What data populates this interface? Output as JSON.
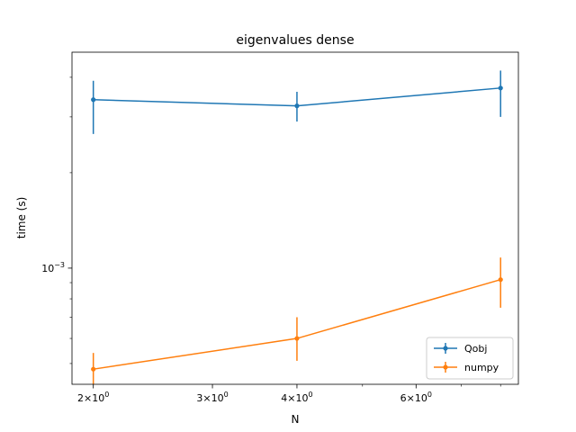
{
  "chart_data": {
    "type": "line",
    "title": "eigenvalues dense",
    "xlabel": "N",
    "ylabel": "time (s)",
    "xscale": "log",
    "yscale": "log",
    "xlim": [
      1.86,
      8.5
    ],
    "ylim": [
      0.00043,
      0.0048
    ],
    "x_ticks": [
      {
        "value": 2,
        "base": "2×10",
        "exp": "0"
      },
      {
        "value": 3,
        "base": "3×10",
        "exp": "0"
      },
      {
        "value": 4,
        "base": "4×10",
        "exp": "0"
      },
      {
        "value": 6,
        "base": "6×10",
        "exp": "0"
      }
    ],
    "y_ticks": [
      {
        "value": 0.001,
        "base": "10",
        "exp": "−3"
      }
    ],
    "legend_position": "lower right",
    "grid": false,
    "series": [
      {
        "name": "Qobj",
        "color": "#1f77b4",
        "x": [
          2,
          4,
          8
        ],
        "y": [
          0.0034,
          0.00325,
          0.0037
        ],
        "err_low": [
          0.00265,
          0.0029,
          0.003
        ],
        "err_high": [
          0.0039,
          0.0036,
          0.0042
        ]
      },
      {
        "name": "numpy",
        "color": "#ff7f0e",
        "x": [
          2,
          4,
          8
        ],
        "y": [
          0.00048,
          0.0006,
          0.00092
        ],
        "err_low": [
          0.00043,
          0.00051,
          0.00075
        ],
        "err_high": [
          0.00054,
          0.0007,
          0.00108
        ]
      }
    ]
  }
}
